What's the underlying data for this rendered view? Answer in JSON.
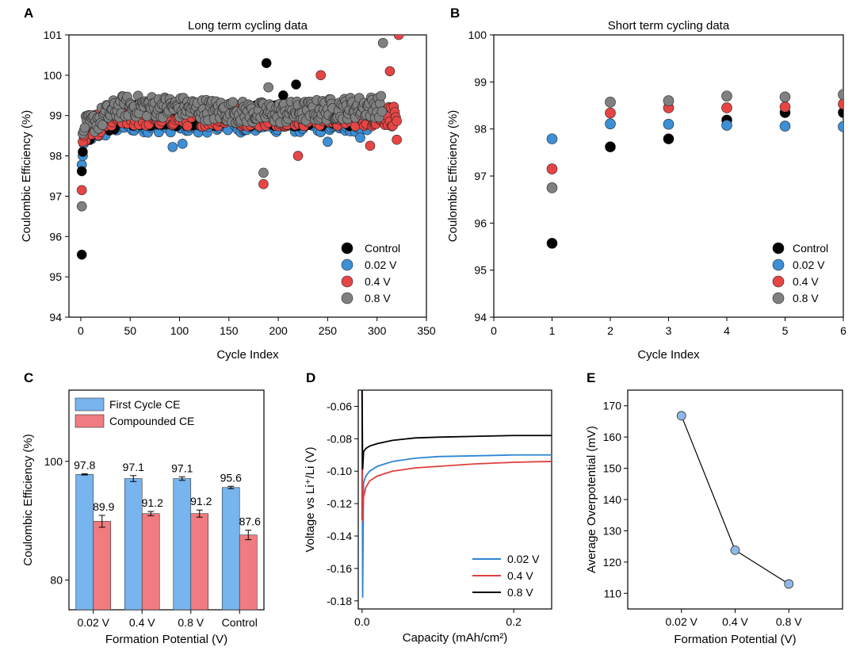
{
  "figure": {
    "panels": [
      "A",
      "B",
      "C",
      "D",
      "E"
    ]
  },
  "colors": {
    "control": "#000000",
    "v002": "#3d8fd6",
    "v04": "#e64545",
    "v08": "#808080",
    "first_cycle_bar": "#78b4ee",
    "compounded_bar": "#f07b80",
    "line_002": "#2e86d4",
    "line_04": "#e0403f",
    "line_08": "#000000",
    "overpotential_marker": "#8fb8e6"
  },
  "chart_data": [
    {
      "id": "A",
      "type": "scatter",
      "title": "Long term cycling data",
      "xlabel": "Cycle Index",
      "ylabel": "Coulombic Efficiency (%)",
      "xlim": [
        -12,
        350
      ],
      "ylim": [
        94,
        101
      ],
      "xticks": [
        0,
        50,
        100,
        150,
        200,
        250,
        300,
        350
      ],
      "yticks": [
        94,
        95,
        96,
        97,
        98,
        99,
        100,
        101
      ],
      "legend": [
        "Control",
        "0.02 V",
        "0.4 V",
        "0.8 V"
      ],
      "legend_position": "bottom-right",
      "series": [
        {
          "name": "Control",
          "first_points": [
            [
              1,
              95.55
            ],
            [
              1,
              97.62
            ],
            [
              2,
              98.1
            ],
            [
              3,
              98.4
            ],
            [
              4,
              98.6
            ]
          ],
          "plateau": 99.0,
          "outliers": [
            [
              188,
              100.3
            ],
            [
              218,
              99.77
            ],
            [
              205,
              99.5
            ]
          ]
        },
        {
          "name": "0.02 V",
          "first_points": [
            [
              1,
              97.78
            ],
            [
              2,
              98.0
            ],
            [
              3,
              98.3
            ],
            [
              4,
              98.55
            ]
          ],
          "plateau": 98.85,
          "outliers": [
            [
              93,
              98.22
            ],
            [
              103,
              98.3
            ],
            [
              250,
              98.35
            ],
            [
              283,
              98.45
            ]
          ]
        },
        {
          "name": "0.4 V",
          "first_points": [
            [
              1,
              97.15
            ],
            [
              2,
              98.35
            ],
            [
              3,
              98.5
            ],
            [
              4,
              98.65
            ]
          ],
          "plateau": 99.0,
          "outliers": [
            [
              185,
              97.3
            ],
            [
              220,
              98.0
            ],
            [
              243,
              100.0
            ],
            [
              313,
              100.1
            ],
            [
              322,
              101.0
            ],
            [
              293,
              98.25
            ],
            [
              320,
              98.4
            ]
          ]
        },
        {
          "name": "0.8 V",
          "first_points": [
            [
              1,
              96.75
            ],
            [
              2,
              98.55
            ],
            [
              3,
              98.62
            ],
            [
              4,
              98.7
            ]
          ],
          "plateau": 99.15,
          "outliers": [
            [
              185,
              97.58
            ],
            [
              306,
              100.8
            ],
            [
              190,
              99.7
            ]
          ]
        }
      ]
    },
    {
      "id": "B",
      "type": "scatter",
      "title": "Short term cycling data",
      "xlabel": "Cycle Index",
      "ylabel": "Coulombic Efficiency (%)",
      "xlim": [
        0,
        6
      ],
      "ylim": [
        94,
        100
      ],
      "xticks": [
        0,
        1,
        2,
        3,
        4,
        5,
        6
      ],
      "yticks": [
        94,
        95,
        96,
        97,
        98,
        99,
        100
      ],
      "legend": [
        "Control",
        "0.02 V",
        "0.4 V",
        "0.8 V"
      ],
      "legend_position": "bottom-right",
      "x": [
        1,
        2,
        3,
        4,
        5,
        6
      ],
      "series": [
        {
          "name": "Control",
          "values": [
            95.57,
            97.62,
            97.79,
            98.19,
            98.35,
            98.35
          ]
        },
        {
          "name": "0.02 V",
          "values": [
            97.79,
            98.11,
            98.1,
            98.08,
            98.06,
            98.05
          ]
        },
        {
          "name": "0.4 V",
          "values": [
            97.15,
            98.34,
            98.45,
            98.45,
            98.47,
            98.53
          ]
        },
        {
          "name": "0.8 V",
          "values": [
            96.75,
            98.57,
            98.6,
            98.7,
            98.68,
            98.73
          ]
        }
      ]
    },
    {
      "id": "C",
      "type": "bar",
      "xlabel": "Formation Potential (V)",
      "ylabel": "Coulombic Efficiency (%)",
      "ylim": [
        75,
        112
      ],
      "yticks": [
        80,
        100
      ],
      "categories": [
        "0.02 V",
        "0.4 V",
        "0.8 V",
        "Control"
      ],
      "legend": [
        "First Cycle CE",
        "Compounded CE"
      ],
      "legend_position": "top-left",
      "series": [
        {
          "name": "First Cycle CE",
          "values": [
            97.8,
            97.1,
            97.1,
            95.6
          ],
          "errors": [
            0.1,
            0.5,
            0.3,
            0.2
          ],
          "labels": [
            "97.8",
            "97.1",
            "97.1",
            "95.6"
          ]
        },
        {
          "name": "Compounded CE",
          "values": [
            89.9,
            91.2,
            91.2,
            87.6
          ],
          "errors": [
            1.0,
            0.35,
            0.6,
            0.8
          ],
          "labels": [
            "89.9",
            "91.2",
            "91.2",
            "87.6"
          ]
        }
      ]
    },
    {
      "id": "D",
      "type": "line",
      "xlabel": "Capacity (mAh/cm²)",
      "ylabel": "Voltage vs Li⁺/Li (V)",
      "xlim": [
        -0.005,
        0.25
      ],
      "ylim": [
        -0.185,
        -0.05
      ],
      "xticks": [
        0.0,
        0.2
      ],
      "xtick_labels": [
        "0.0",
        "0.2"
      ],
      "yticks": [
        -0.06,
        -0.08,
        -0.1,
        -0.12,
        -0.14,
        -0.16,
        -0.18
      ],
      "ytick_labels": [
        "-0.06",
        "-0.08",
        "-0.10",
        "-0.12",
        "-0.14",
        "-0.16",
        "-0.18"
      ],
      "legend": [
        "0.02 V",
        "0.4 V",
        "0.8 V"
      ],
      "legend_position": "bottom-right",
      "series": [
        {
          "name": "0.02 V",
          "x": [
            0.0,
            0.0008,
            0.002,
            0.005,
            0.01,
            0.02,
            0.04,
            0.07,
            0.1,
            0.15,
            0.2,
            0.25
          ],
          "y": [
            -0.05,
            -0.178,
            -0.107,
            -0.103,
            -0.1,
            -0.097,
            -0.094,
            -0.092,
            -0.091,
            -0.0905,
            -0.09,
            -0.09
          ]
        },
        {
          "name": "0.4 V",
          "x": [
            0.0,
            0.0008,
            0.002,
            0.005,
            0.01,
            0.02,
            0.04,
            0.07,
            0.1,
            0.15,
            0.2,
            0.25
          ],
          "y": [
            -0.05,
            -0.131,
            -0.116,
            -0.11,
            -0.106,
            -0.103,
            -0.1,
            -0.098,
            -0.097,
            -0.0955,
            -0.0945,
            -0.094
          ]
        },
        {
          "name": "0.8 V",
          "x": [
            0.0,
            0.0008,
            0.002,
            0.005,
            0.01,
            0.02,
            0.04,
            0.07,
            0.1,
            0.15,
            0.2,
            0.25
          ],
          "y": [
            -0.05,
            -0.099,
            -0.088,
            -0.086,
            -0.0845,
            -0.083,
            -0.081,
            -0.0795,
            -0.079,
            -0.0785,
            -0.078,
            -0.078
          ]
        }
      ]
    },
    {
      "id": "E",
      "type": "line",
      "xlabel": "Formation Potential (V)",
      "ylabel": "Average Overpotential (mV)",
      "ylim": [
        105,
        175
      ],
      "yticks": [
        110,
        120,
        130,
        140,
        150,
        160,
        170
      ],
      "categories": [
        "0.02 V",
        "0.4 V",
        "0.8 V"
      ],
      "values": [
        166.8,
        123.8,
        113.0
      ]
    }
  ]
}
